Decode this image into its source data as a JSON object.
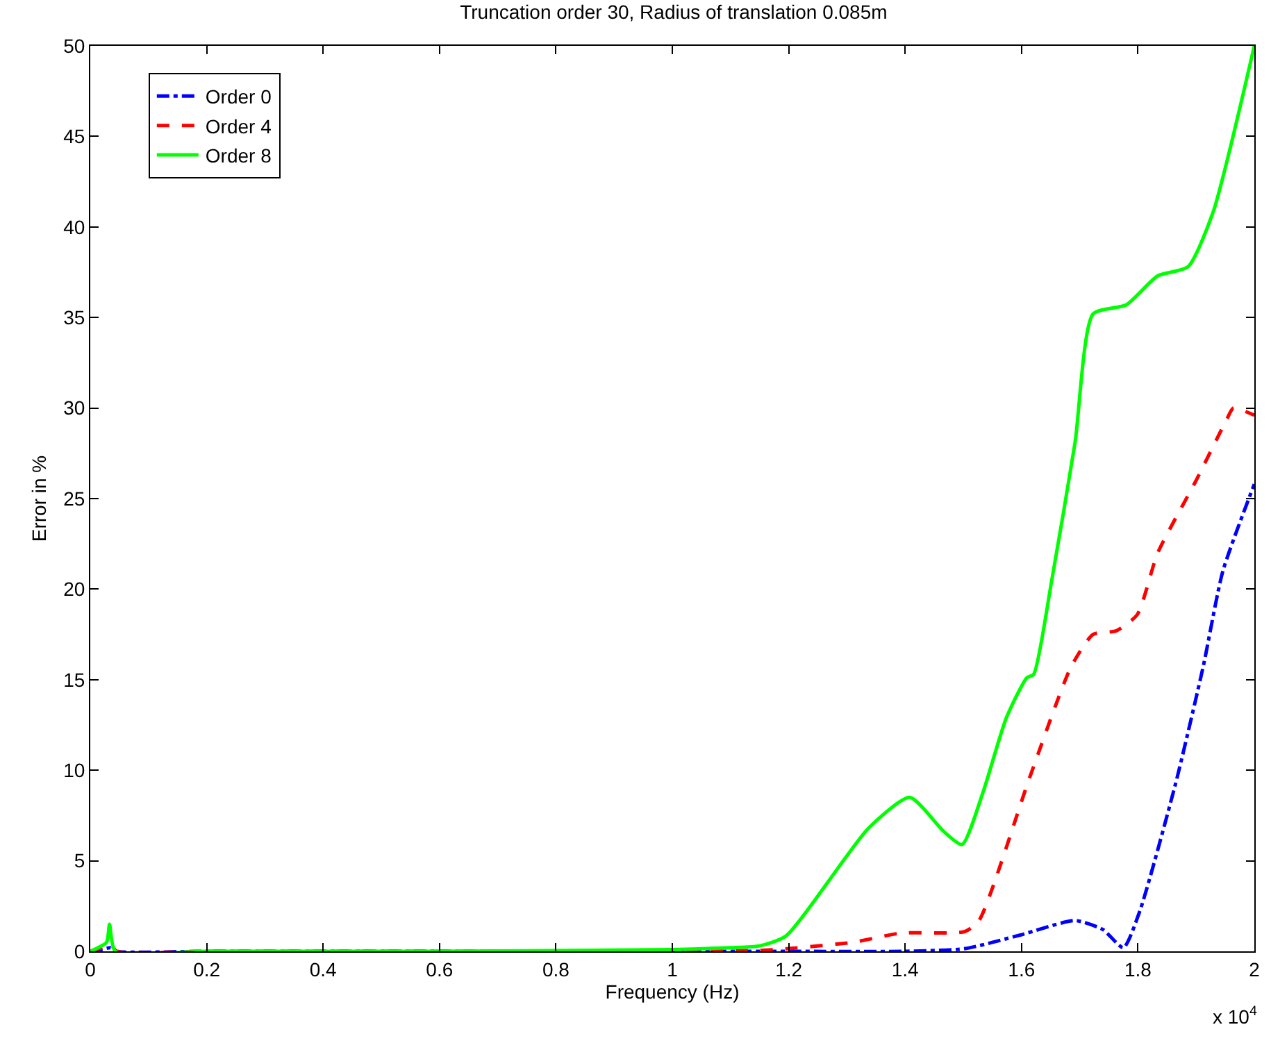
{
  "chart_data": {
    "type": "line",
    "title": "Truncation order 30, Radius of translation 0.085m",
    "xlabel": "Frequency (Hz)",
    "ylabel": "Error in %",
    "annotations": [
      "x 10$^{4}$"
    ],
    "xlim": [
      0,
      2
    ],
    "xticks": [
      0,
      0.2,
      0.4,
      0.6,
      0.8,
      1,
      1.2,
      1.4,
      1.6,
      1.8,
      2
    ],
    "ylim": [
      0,
      50
    ],
    "yticks": [
      0,
      5,
      10,
      15,
      20,
      25,
      30,
      35,
      40,
      45,
      50
    ],
    "grid": false,
    "legend": "top left",
    "marker": "none",
    "series": [
      {
        "name": "Order 0",
        "color": "#0000ff",
        "line_style": "dashdot",
        "x": [
          0,
          0.02,
          0.035,
          0.045,
          0.2,
          0.6,
          1,
          1.2,
          1.4,
          1.503,
          1.598,
          1.692,
          1.74,
          1.775,
          1.803,
          1.865,
          1.912,
          1.946,
          2
        ],
        "values": [
          0,
          0.1,
          0.2,
          0,
          0,
          0,
          0,
          0,
          0,
          0.15,
          0.9,
          1.7,
          1.2,
          0.2,
          2.2,
          9.3,
          15.7,
          21,
          25.8
        ]
      },
      {
        "name": "Order 4",
        "color": "#ff0000",
        "line_style": "dashed",
        "x": [
          0,
          0.02,
          0.035,
          0.045,
          0.2,
          0.6,
          1,
          1.15,
          1.2,
          1.31,
          1.392,
          1.503,
          1.527,
          1.614,
          1.685,
          1.723,
          1.763,
          1.799,
          1.834,
          1.9,
          1.953,
          1.964,
          2
        ],
        "values": [
          0,
          0.2,
          0.4,
          0,
          0,
          0,
          0,
          0.05,
          0.15,
          0.5,
          1,
          1.1,
          1.7,
          9.6,
          15.7,
          17.5,
          17.7,
          18.6,
          22,
          26,
          29.4,
          30,
          29.6
        ]
      },
      {
        "name": "Order 8",
        "color": "#00ff00",
        "line_style": "solid",
        "x": [
          0,
          0.028,
          0.033,
          0.043,
          0.2,
          0.6,
          1,
          1.1,
          1.15,
          1.195,
          1.337,
          1.408,
          1.467,
          1.498,
          1.534,
          1.574,
          1.609,
          1.621,
          1.652,
          1.692,
          1.723,
          1.78,
          1.834,
          1.886,
          1.929,
          2
        ],
        "values": [
          0,
          0.5,
          1.5,
          0,
          0,
          0,
          0.1,
          0.2,
          0.3,
          0.84,
          6.8,
          8.5,
          6.6,
          5.9,
          8.8,
          12.9,
          15.1,
          15.3,
          20.5,
          28.1,
          35.2,
          35.7,
          37.3,
          37.8,
          40.8,
          50
        ]
      }
    ]
  }
}
